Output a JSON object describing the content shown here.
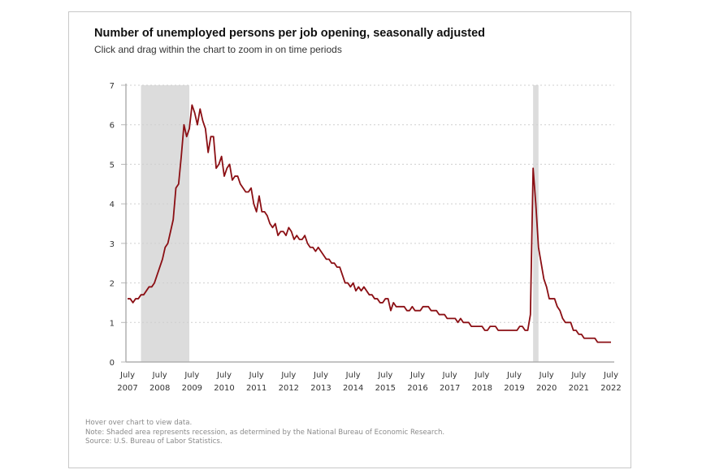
{
  "chart_data": {
    "type": "line",
    "title": "Number of unemployed persons per job opening, seasonally adjusted",
    "subtitle": "Click and drag within the chart to zoom in on time periods",
    "xlabel": "",
    "ylabel": "",
    "ylim": [
      0,
      7
    ],
    "yticks": [
      "0",
      "1",
      "2",
      "3",
      "4",
      "5",
      "6",
      "7"
    ],
    "grid": true,
    "legend": "none",
    "start": "2007-07",
    "frequency": "monthly",
    "xticks": [
      {
        "month": "July",
        "year": "2007"
      },
      {
        "month": "July",
        "year": "2008"
      },
      {
        "month": "July",
        "year": "2009"
      },
      {
        "month": "July",
        "year": "2010"
      },
      {
        "month": "July",
        "year": "2011"
      },
      {
        "month": "July",
        "year": "2012"
      },
      {
        "month": "July",
        "year": "2013"
      },
      {
        "month": "July",
        "year": "2014"
      },
      {
        "month": "July",
        "year": "2015"
      },
      {
        "month": "July",
        "year": "2016"
      },
      {
        "month": "July",
        "year": "2017"
      },
      {
        "month": "July",
        "year": "2018"
      },
      {
        "month": "July",
        "year": "2019"
      },
      {
        "month": "July",
        "year": "2020"
      },
      {
        "month": "July",
        "year": "2021"
      },
      {
        "month": "July",
        "year": "2022"
      }
    ],
    "recessions": [
      {
        "start": "2007-12",
        "end": "2009-06"
      },
      {
        "start": "2020-02",
        "end": "2020-04"
      }
    ],
    "series": [
      {
        "name": "Unemployed persons per job opening",
        "color": "#8b0f14",
        "values": [
          1.6,
          1.6,
          1.5,
          1.6,
          1.6,
          1.7,
          1.7,
          1.8,
          1.9,
          1.9,
          2.0,
          2.2,
          2.4,
          2.6,
          2.9,
          3.0,
          3.3,
          3.6,
          4.4,
          4.5,
          5.2,
          6.0,
          5.7,
          5.9,
          6.5,
          6.3,
          6.0,
          6.4,
          6.1,
          5.9,
          5.3,
          5.7,
          5.7,
          4.9,
          5.0,
          5.2,
          4.7,
          4.9,
          5.0,
          4.6,
          4.7,
          4.7,
          4.5,
          4.4,
          4.3,
          4.3,
          4.4,
          4.0,
          3.8,
          4.2,
          3.8,
          3.8,
          3.7,
          3.5,
          3.4,
          3.5,
          3.2,
          3.3,
          3.3,
          3.2,
          3.4,
          3.3,
          3.1,
          3.2,
          3.1,
          3.1,
          3.2,
          3.0,
          2.9,
          2.9,
          2.8,
          2.9,
          2.8,
          2.7,
          2.6,
          2.6,
          2.5,
          2.5,
          2.4,
          2.4,
          2.2,
          2.0,
          2.0,
          1.9,
          2.0,
          1.8,
          1.9,
          1.8,
          1.9,
          1.8,
          1.7,
          1.7,
          1.6,
          1.6,
          1.5,
          1.5,
          1.6,
          1.6,
          1.3,
          1.5,
          1.4,
          1.4,
          1.4,
          1.4,
          1.3,
          1.3,
          1.4,
          1.3,
          1.3,
          1.3,
          1.4,
          1.4,
          1.4,
          1.3,
          1.3,
          1.3,
          1.2,
          1.2,
          1.2,
          1.1,
          1.1,
          1.1,
          1.1,
          1.0,
          1.1,
          1.0,
          1.0,
          1.0,
          0.9,
          0.9,
          0.9,
          0.9,
          0.9,
          0.8,
          0.8,
          0.9,
          0.9,
          0.9,
          0.8,
          0.8,
          0.8,
          0.8,
          0.8,
          0.8,
          0.8,
          0.8,
          0.9,
          0.9,
          0.8,
          0.8,
          1.2,
          4.9,
          4.0,
          2.9,
          2.5,
          2.1,
          1.9,
          1.6,
          1.6,
          1.6,
          1.4,
          1.3,
          1.1,
          1.0,
          1.0,
          1.0,
          0.8,
          0.8,
          0.7,
          0.7,
          0.6,
          0.6,
          0.6,
          0.6,
          0.6,
          0.5,
          0.5,
          0.5,
          0.5,
          0.5,
          0.5
        ]
      }
    ]
  },
  "notes": {
    "hover": "Hover over chart to view data.",
    "note": "Note: Shaded area represents recession, as determined by the National Bureau of Economic Research.",
    "source": "Source: U.S. Bureau of Labor Statistics."
  }
}
